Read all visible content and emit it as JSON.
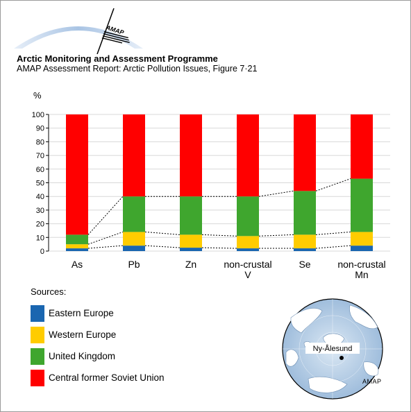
{
  "header": {
    "logo_text": "AMAP",
    "title": "Arctic Monitoring and Assessment Programme",
    "subtitle": "AMAP Assessment Report: Arctic Pollution Issues, Figure 7·21"
  },
  "chart_data": {
    "type": "bar",
    "stacked": true,
    "ylabel": "%",
    "ylim": [
      0,
      100
    ],
    "yticks": [
      0,
      10,
      20,
      30,
      40,
      50,
      60,
      70,
      80,
      90,
      100
    ],
    "categories": [
      "As",
      "Pb",
      "Zn",
      "non-crustal V",
      "Se",
      "non-crustal Mn"
    ],
    "category_lines": [
      [
        "As"
      ],
      [
        "Pb"
      ],
      [
        "Zn"
      ],
      [
        "non-crustal",
        "V"
      ],
      [
        "Se"
      ],
      [
        "non-crustal",
        "Mn"
      ]
    ],
    "series": [
      {
        "name": "Eastern Europe",
        "color": "#1a66b0",
        "values": [
          2,
          4,
          2.5,
          2,
          2,
          4
        ]
      },
      {
        "name": "Western Europe",
        "color": "#ffcc00",
        "values": [
          3,
          10,
          9.5,
          9,
          10,
          10
        ]
      },
      {
        "name": "United Kingdom",
        "color": "#3fa62e",
        "values": [
          7,
          26,
          28,
          29,
          32,
          39
        ]
      },
      {
        "name": "Central former Soviet Union",
        "color": "#ff0000",
        "values": [
          88,
          60,
          60,
          60,
          56,
          47
        ]
      }
    ],
    "connectors": "dashed lines join cumulative boundaries of adjacent bars",
    "legend_title": "Sources:",
    "legend_position": "bottom-left"
  },
  "map": {
    "label": "Ny-Ålesund",
    "credit": "AMAP"
  }
}
